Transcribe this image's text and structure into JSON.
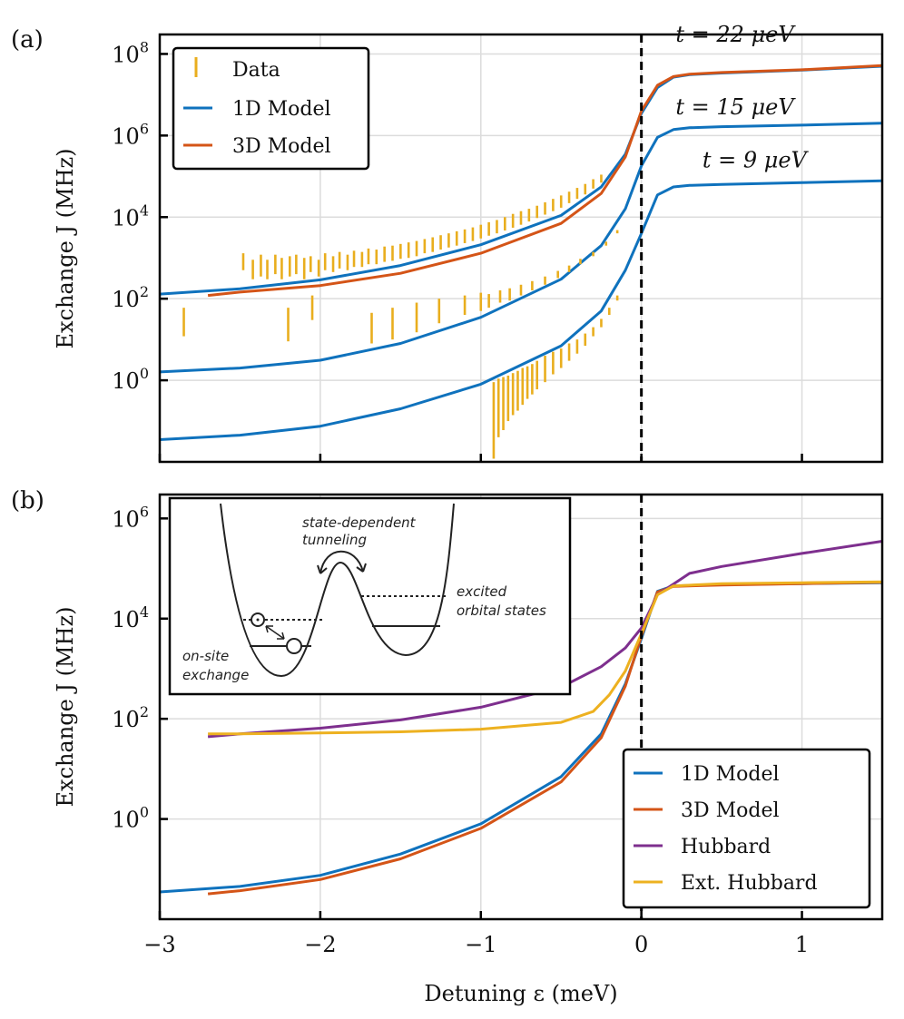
{
  "figure": {
    "xlabel": "Detuning ε (meV)",
    "x_ticks": [
      -3,
      -2,
      -1,
      0,
      1
    ],
    "x_tick_labels": [
      "−3",
      "−2",
      "−1",
      "0",
      "1"
    ],
    "colors": {
      "data": "#E9AE1E",
      "model_1d": "#0F72BD",
      "model_3d": "#D45417",
      "hubbard": "#7E2F8E",
      "ext_hubbard": "#EDB120",
      "axis": "#000000"
    }
  },
  "chart_data": [
    {
      "type": "line",
      "panel_label": "(a)",
      "ylabel": "Exchange J (MHz)",
      "yscale": "log",
      "xlim": [
        -3,
        1.5
      ],
      "ylim": [
        0.01,
        300000000
      ],
      "grid": true,
      "y_ticks": [
        1,
        100,
        10000,
        1000000,
        100000000
      ],
      "y_tick_labels": [
        {
          "base": "10",
          "exp": "0"
        },
        {
          "base": "10",
          "exp": "2"
        },
        {
          "base": "10",
          "exp": "4"
        },
        {
          "base": "10",
          "exp": "6"
        },
        {
          "base": "10",
          "exp": "8"
        }
      ],
      "vertical_line": {
        "x": 0,
        "style": "dashed"
      },
      "legend": {
        "location": "top-left",
        "entries": [
          "Data",
          "1D Model",
          "3D Model"
        ]
      },
      "annotations": [
        {
          "text": "t = 22 μeV",
          "x": 0.95,
          "y": 300000000
        },
        {
          "text": "t = 15 μeV",
          "x": 0.95,
          "y": 5000000
        },
        {
          "text": "t = 9 μeV",
          "x": 1.03,
          "y": 250000
        }
      ],
      "series": [
        {
          "name": "1D Model",
          "label": "t = 22 μeV",
          "points": [
            [
              -3,
              130
            ],
            [
              -2.5,
              175
            ],
            [
              -2,
              290
            ],
            [
              -1.5,
              650
            ],
            [
              -1,
              2100
            ],
            [
              -0.5,
              11000
            ],
            [
              -0.25,
              55000
            ],
            [
              -0.1,
              350000
            ],
            [
              0,
              3500000
            ],
            [
              0.1,
              15000000
            ],
            [
              0.2,
              27000000
            ],
            [
              0.3,
              31000000
            ],
            [
              0.5,
              34000000
            ],
            [
              1,
              40000000
            ],
            [
              1.5,
              50000000
            ]
          ]
        },
        {
          "name": "3D Model",
          "label": "t = 22 μeV",
          "points": [
            [
              -2.7,
              120
            ],
            [
              -2.5,
              145
            ],
            [
              -2,
              210
            ],
            [
              -1.5,
              420
            ],
            [
              -1,
              1300
            ],
            [
              -0.5,
              7000
            ],
            [
              -0.25,
              38000
            ],
            [
              -0.1,
              300000
            ],
            [
              0,
              4000000
            ],
            [
              0.1,
              17000000
            ],
            [
              0.2,
              28000000
            ],
            [
              0.3,
              32000000
            ],
            [
              0.5,
              35000000
            ],
            [
              1,
              41000000
            ],
            [
              1.5,
              52000000
            ]
          ]
        },
        {
          "name": "1D Model",
          "label": "t = 15 μeV",
          "points": [
            [
              -3,
              1.6
            ],
            [
              -2.5,
              2
            ],
            [
              -2,
              3.1
            ],
            [
              -1.5,
              8
            ],
            [
              -1,
              35
            ],
            [
              -0.5,
              300
            ],
            [
              -0.25,
              2000
            ],
            [
              -0.1,
              16000
            ],
            [
              0,
              180000
            ],
            [
              0.1,
              900000
            ],
            [
              0.2,
              1400000
            ],
            [
              0.3,
              1550000
            ],
            [
              0.5,
              1650000
            ],
            [
              1,
              1800000
            ],
            [
              1.5,
              2000000
            ]
          ]
        },
        {
          "name": "1D Model",
          "label": "t = 9 μeV",
          "points": [
            [
              -3,
              0.035
            ],
            [
              -2.5,
              0.045
            ],
            [
              -2,
              0.075
            ],
            [
              -1.5,
              0.2
            ],
            [
              -1,
              0.8
            ],
            [
              -0.5,
              7
            ],
            [
              -0.25,
              50
            ],
            [
              -0.1,
              500
            ],
            [
              0,
              4000
            ],
            [
              0.1,
              35000
            ],
            [
              0.2,
              55000
            ],
            [
              0.3,
              60000
            ],
            [
              0.5,
              63000
            ],
            [
              1,
              70000
            ],
            [
              1.5,
              78000
            ]
          ]
        }
      ],
      "data_errorbars": {
        "name": "Data",
        "bars": [
          [
            -2.85,
            12,
            60
          ],
          [
            -2.48,
            500,
            1300
          ],
          [
            -2.42,
            300,
            900
          ],
          [
            -2.37,
            350,
            1200
          ],
          [
            -2.33,
            300,
            900
          ],
          [
            -2.28,
            400,
            1200
          ],
          [
            -2.24,
            300,
            1000
          ],
          [
            -2.19,
            350,
            1100
          ],
          [
            -2.15,
            400,
            1200
          ],
          [
            -2.1,
            300,
            1000
          ],
          [
            -2.06,
            450,
            1100
          ],
          [
            -2.01,
            350,
            900
          ],
          [
            -1.97,
            500,
            1300
          ],
          [
            -1.92,
            450,
            1100
          ],
          [
            -1.88,
            550,
            1400
          ],
          [
            -1.83,
            500,
            1200
          ],
          [
            -1.79,
            600,
            1500
          ],
          [
            -1.74,
            600,
            1400
          ],
          [
            -1.7,
            700,
            1700
          ],
          [
            -1.65,
            700,
            1600
          ],
          [
            -1.6,
            800,
            1900
          ],
          [
            -1.55,
            850,
            2000
          ],
          [
            -1.5,
            950,
            2200
          ],
          [
            -1.45,
            1000,
            2400
          ],
          [
            -1.4,
            1100,
            2600
          ],
          [
            -1.35,
            1300,
            2900
          ],
          [
            -1.3,
            1400,
            3200
          ],
          [
            -1.25,
            1600,
            3600
          ],
          [
            -1.2,
            1800,
            4000
          ],
          [
            -1.15,
            2000,
            4500
          ],
          [
            -1.1,
            2300,
            5000
          ],
          [
            -1.05,
            2600,
            5600
          ],
          [
            -1,
            3000,
            6500
          ],
          [
            -0.95,
            3500,
            7500
          ],
          [
            -0.9,
            4000,
            8500
          ],
          [
            -0.85,
            4700,
            10000
          ],
          [
            -0.8,
            5500,
            12000
          ],
          [
            -0.75,
            6500,
            14000
          ],
          [
            -0.7,
            7800,
            16000
          ],
          [
            -0.65,
            9500,
            19000
          ],
          [
            -0.6,
            11500,
            23000
          ],
          [
            -0.55,
            14000,
            28000
          ],
          [
            -0.5,
            17000,
            34000
          ],
          [
            -0.45,
            22000,
            42000
          ],
          [
            -0.4,
            28000,
            52000
          ],
          [
            -0.35,
            36000,
            65000
          ],
          [
            -0.3,
            50000,
            85000
          ],
          [
            -0.25,
            70000,
            110000
          ],
          [
            -2.2,
            9,
            60
          ],
          [
            -2.05,
            30,
            120
          ],
          [
            -1.68,
            8,
            45
          ],
          [
            -1.55,
            10,
            60
          ],
          [
            -1.4,
            15,
            80
          ],
          [
            -1.26,
            25,
            100
          ],
          [
            -1.1,
            40,
            120
          ],
          [
            -1,
            50,
            140
          ],
          [
            -0.95,
            60,
            130
          ],
          [
            -0.88,
            80,
            160
          ],
          [
            -0.82,
            90,
            180
          ],
          [
            -0.75,
            120,
            220
          ],
          [
            -0.68,
            160,
            270
          ],
          [
            -0.6,
            220,
            350
          ],
          [
            -0.52,
            320,
            480
          ],
          [
            -0.45,
            450,
            650
          ],
          [
            -0.38,
            700,
            950
          ],
          [
            -0.3,
            1100,
            1400
          ],
          [
            -0.22,
            2000,
            2500
          ],
          [
            -0.15,
            4000,
            4800
          ],
          [
            -0.92,
            0.012,
            0.9
          ],
          [
            -0.89,
            0.04,
            1.1
          ],
          [
            -0.86,
            0.06,
            1.2
          ],
          [
            -0.83,
            0.1,
            1.3
          ],
          [
            -0.8,
            0.14,
            1.5
          ],
          [
            -0.77,
            0.18,
            1.7
          ],
          [
            -0.74,
            0.25,
            2
          ],
          [
            -0.71,
            0.35,
            2.2
          ],
          [
            -0.68,
            0.45,
            2.5
          ],
          [
            -0.65,
            0.6,
            3
          ],
          [
            -0.6,
            0.9,
            4
          ],
          [
            -0.55,
            1.4,
            5
          ],
          [
            -0.5,
            2,
            6
          ],
          [
            -0.45,
            3,
            8
          ],
          [
            -0.4,
            4.5,
            10
          ],
          [
            -0.35,
            7,
            14
          ],
          [
            -0.3,
            12,
            20
          ],
          [
            -0.25,
            20,
            32
          ],
          [
            -0.2,
            40,
            60
          ],
          [
            -0.15,
            90,
            120
          ]
        ]
      }
    },
    {
      "type": "line",
      "panel_label": "(b)",
      "ylabel": "Exchange J (MHz)",
      "yscale": "log",
      "xlim": [
        -3,
        1.5
      ],
      "ylim": [
        0.01,
        3000000
      ],
      "grid": true,
      "y_ticks": [
        1,
        100,
        10000,
        1000000
      ],
      "y_tick_labels": [
        {
          "base": "10",
          "exp": "0"
        },
        {
          "base": "10",
          "exp": "2"
        },
        {
          "base": "10",
          "exp": "4"
        },
        {
          "base": "10",
          "exp": "6"
        }
      ],
      "vertical_line": {
        "x": 0,
        "style": "dashed"
      },
      "legend": {
        "location": "bottom-right",
        "entries": [
          "1D Model",
          "3D Model",
          "Hubbard",
          "Ext. Hubbard"
        ]
      },
      "series": [
        {
          "name": "1D Model",
          "points": [
            [
              -3,
              0.035
            ],
            [
              -2.5,
              0.045
            ],
            [
              -2,
              0.075
            ],
            [
              -1.5,
              0.2
            ],
            [
              -1,
              0.8
            ],
            [
              -0.5,
              7
            ],
            [
              -0.25,
              50
            ],
            [
              -0.1,
              500
            ],
            [
              0,
              4000
            ],
            [
              0.1,
              35000
            ],
            [
              0.2,
              45000
            ],
            [
              0.5,
              48000
            ],
            [
              1,
              50000
            ],
            [
              1.5,
              52000
            ]
          ]
        },
        {
          "name": "3D Model",
          "points": [
            [
              -2.7,
              0.032
            ],
            [
              -2.5,
              0.037
            ],
            [
              -2,
              0.062
            ],
            [
              -1.5,
              0.16
            ],
            [
              -1,
              0.65
            ],
            [
              -0.5,
              5.5
            ],
            [
              -0.25,
              42
            ],
            [
              -0.1,
              450
            ],
            [
              0,
              4500
            ],
            [
              0.1,
              34000
            ],
            [
              0.2,
              44000
            ],
            [
              0.5,
              47000
            ],
            [
              1,
              50000
            ],
            [
              1.5,
              53000
            ]
          ]
        },
        {
          "name": "Hubbard",
          "points": [
            [
              -2.7,
              44
            ],
            [
              -2.5,
              50
            ],
            [
              -2,
              65
            ],
            [
              -1.5,
              95
            ],
            [
              -1,
              170
            ],
            [
              -0.5,
              430
            ],
            [
              -0.25,
              1100
            ],
            [
              -0.1,
              2600
            ],
            [
              0,
              6500
            ],
            [
              0.1,
              30000
            ],
            [
              0.3,
              80000
            ],
            [
              0.5,
              110000
            ],
            [
              1,
              200000
            ],
            [
              1.5,
              350000
            ]
          ]
        },
        {
          "name": "Ext. Hubbard",
          "points": [
            [
              -2.7,
              50
            ],
            [
              -2.5,
              50
            ],
            [
              -2,
              52
            ],
            [
              -1.5,
              55
            ],
            [
              -1,
              62
            ],
            [
              -0.5,
              85
            ],
            [
              -0.3,
              140
            ],
            [
              -0.2,
              300
            ],
            [
              -0.1,
              900
            ],
            [
              0,
              5000
            ],
            [
              0.1,
              30000
            ],
            [
              0.2,
              45000
            ],
            [
              0.5,
              50000
            ],
            [
              1,
              52000
            ],
            [
              1.5,
              54000
            ]
          ]
        }
      ],
      "inset": {
        "labels": {
          "tunneling": [
            "state-dependent",
            "tunneling"
          ],
          "excited": [
            "excited",
            "orbital states"
          ],
          "onsite": [
            "on-site",
            "exchange"
          ]
        }
      }
    }
  ]
}
